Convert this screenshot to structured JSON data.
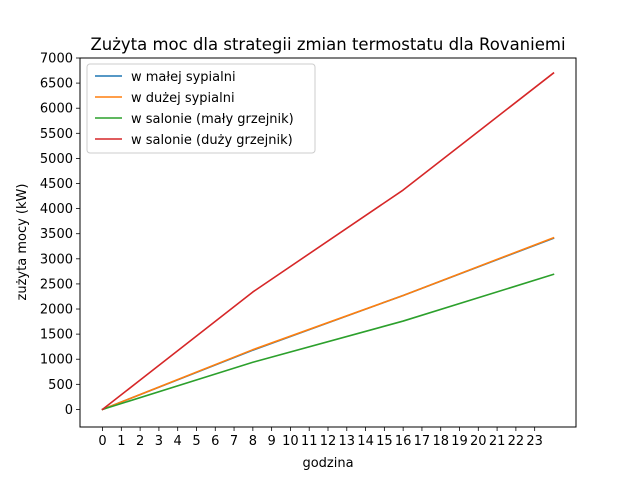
{
  "chart_data": {
    "type": "line",
    "title": "Zużyta moc dla strategii zmian termostatu dla Rovaniemi",
    "xlabel": "godzina",
    "ylabel": "zużyta mocy (kW)",
    "xlim": [
      -1.2,
      25.2
    ],
    "ylim": [
      -350,
      7000
    ],
    "xticks": [
      0,
      1,
      2,
      3,
      4,
      5,
      6,
      7,
      8,
      9,
      10,
      11,
      12,
      13,
      14,
      15,
      16,
      17,
      18,
      19,
      20,
      21,
      22,
      23
    ],
    "yticks": [
      0,
      500,
      1000,
      1500,
      2000,
      2500,
      3000,
      3500,
      4000,
      4500,
      5000,
      5500,
      6000,
      6500,
      7000
    ],
    "legend_position": "upper-left",
    "grid": false,
    "x": [
      0,
      8,
      16,
      24
    ],
    "series": [
      {
        "name": "w małej sypialni",
        "color": "#1f77b4",
        "values": [
          0,
          1180,
          2270,
          3410
        ]
      },
      {
        "name": "w dużej sypialni",
        "color": "#ff7f0e",
        "values": [
          0,
          1190,
          2270,
          3420
        ]
      },
      {
        "name": "w salonie (mały grzejnik)",
        "color": "#2ca02c",
        "values": [
          0,
          940,
          1760,
          2690
        ]
      },
      {
        "name": "w salonie (duży grzejnik)",
        "color": "#d62728",
        "values": [
          0,
          2340,
          4370,
          6700
        ]
      }
    ]
  }
}
